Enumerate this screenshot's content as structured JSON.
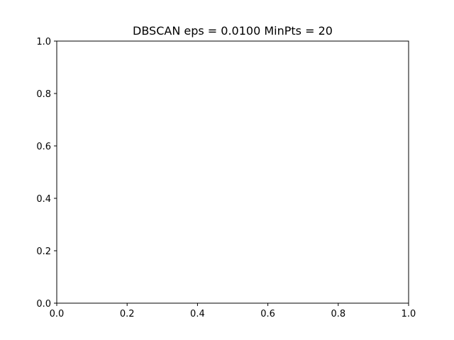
{
  "chart_data": {
    "type": "scatter",
    "title": "DBSCAN eps = 0.0100 MinPts = 20",
    "xlabel": "",
    "ylabel": "",
    "xlim": [
      0.0,
      1.0
    ],
    "ylim": [
      0.0,
      1.0
    ],
    "x_ticks": [
      "0.0",
      "0.2",
      "0.4",
      "0.6",
      "0.8",
      "1.0"
    ],
    "y_ticks": [
      "0.0",
      "0.2",
      "0.4",
      "0.6",
      "0.8",
      "1.0"
    ],
    "grid": false,
    "series": []
  }
}
